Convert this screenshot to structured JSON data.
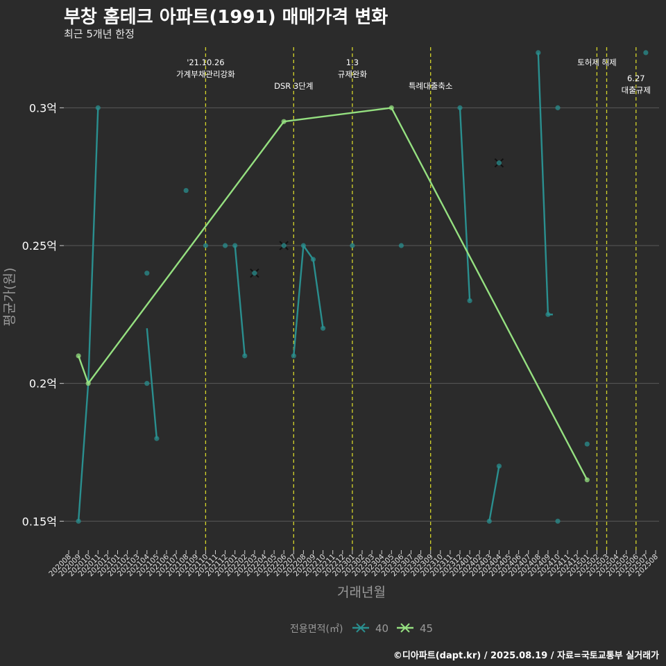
{
  "title": "부창 홈테크 아파트(1991) 매매가격 변화",
  "subtitle": "최근 5개년 한정",
  "caption": "©디아파트(dapt.kr) / 2025.08.19 / 자료=국토교통부 실거래가",
  "chart_data": {
    "type": "line",
    "xlabel": "거래년월",
    "ylabel": "평균가(원)",
    "x_ticks": [
      "202008",
      "202009",
      "202010",
      "202011",
      "202012",
      "202101",
      "202102",
      "202103",
      "202104",
      "202105",
      "202106",
      "202107",
      "202108",
      "202109",
      "202110",
      "202111",
      "202112",
      "202201",
      "202202",
      "202203",
      "202204",
      "202205",
      "202206",
      "202207",
      "202208",
      "202209",
      "202210",
      "202211",
      "202212",
      "202301",
      "202302",
      "202303",
      "202304",
      "202305",
      "202306",
      "202307",
      "202308",
      "202309",
      "202310",
      "202311",
      "202312",
      "202401",
      "202402",
      "202403",
      "202404",
      "202405",
      "202406",
      "202407",
      "202408",
      "202409",
      "202410",
      "202411",
      "202412",
      "202501",
      "202502",
      "202503",
      "202504",
      "202505",
      "202506",
      "202507",
      "202508"
    ],
    "y_ticks": [
      0.15,
      0.2,
      0.25,
      0.3
    ],
    "y_tick_labels": [
      "0.15억",
      "0.2억",
      "0.25억",
      "0.3억"
    ],
    "ylim": [
      0.1395,
      0.3235
    ],
    "legend": {
      "title": "전용면적(㎡)",
      "entries": [
        "40",
        "45"
      ],
      "position": "bottom"
    },
    "colors": {
      "40": "#2a8f8f",
      "45": "#95e080",
      "vline": "#d6d62a",
      "grid": "#5a5a5a",
      "axis_text": "#ffffff",
      "axis_title": "#9a9a9a"
    },
    "events": [
      {
        "month": "202110",
        "line1": "'21.10.26",
        "line2": "가계부채관리강화",
        "row": 1
      },
      {
        "month": "202207",
        "line1": "DSR 3단계",
        "line2": "",
        "row": 2
      },
      {
        "month": "202301",
        "line1": "1.3",
        "line2": "규제완화",
        "row": 1
      },
      {
        "month": "202309",
        "line1": "특례대출축소",
        "line2": "",
        "row": 2
      },
      {
        "month": "202502",
        "line1": "토허제 해제",
        "line2": "",
        "row": 1
      },
      {
        "month": "202503",
        "line1": "",
        "line2": "",
        "row": 1
      },
      {
        "month": "202506",
        "line1": "6.27",
        "line2": "대출규제",
        "row": 3
      }
    ],
    "series": [
      {
        "name": "40",
        "segments": [
          [
            [
              "202009",
              0.15
            ],
            [
              "202010",
              0.2
            ],
            [
              "202011",
              0.3
            ]
          ],
          [
            [
              "202104",
              0.22
            ],
            [
              "202105",
              0.18
            ]
          ],
          [
            [
              "202201",
              0.25
            ],
            [
              "202202",
              0.21
            ]
          ],
          [
            [
              "202207",
              0.21
            ],
            [
              "202208",
              0.25
            ],
            [
              "202209",
              0.245
            ],
            [
              "202210",
              0.22
            ]
          ],
          [
            [
              "202312",
              0.3
            ],
            [
              "202401",
              0.23
            ]
          ],
          [
            [
              "202403",
              0.15
            ],
            [
              "202404",
              0.17
            ]
          ],
          [
            [
              "202408",
              0.32
            ],
            [
              "202409",
              0.225
            ],
            [
              "20240950",
              0.225
            ]
          ]
        ],
        "points": [
          [
            "202009",
            0.15
          ],
          [
            "202011",
            0.3
          ],
          [
            "202104",
            0.24
          ],
          [
            "202104",
            0.2
          ],
          [
            "202105",
            0.18
          ],
          [
            "202108",
            0.27
          ],
          [
            "202110",
            0.25
          ],
          [
            "202112",
            0.25
          ],
          [
            "202201",
            0.25
          ],
          [
            "202202",
            0.21
          ],
          [
            "202207",
            0.21
          ],
          [
            "202208",
            0.25
          ],
          [
            "202209",
            0.245
          ],
          [
            "202210",
            0.22
          ],
          [
            "202301",
            0.25
          ],
          [
            "202306",
            0.25
          ],
          [
            "202312",
            0.3
          ],
          [
            "202401",
            0.23
          ],
          [
            "202403",
            0.15
          ],
          [
            "202404",
            0.17
          ],
          [
            "202408",
            0.32
          ],
          [
            "202409",
            0.225
          ],
          [
            "202410",
            0.3
          ],
          [
            "202410",
            0.15
          ],
          [
            "202501",
            0.178
          ],
          [
            "202507",
            0.32
          ]
        ],
        "x_markers": [
          [
            "202203",
            0.24
          ],
          [
            "202206",
            0.25
          ],
          [
            "202404",
            0.28
          ]
        ]
      },
      {
        "name": "45",
        "segments": [
          [
            [
              "202009",
              0.21
            ],
            [
              "202010",
              0.2
            ],
            [
              "202206",
              0.295
            ],
            [
              "202305",
              0.3
            ],
            [
              "202501",
              0.165
            ]
          ]
        ],
        "points": [
          [
            "202009",
            0.21
          ],
          [
            "202010",
            0.2
          ],
          [
            "202206",
            0.295
          ],
          [
            "202305",
            0.3
          ],
          [
            "202501",
            0.165
          ]
        ],
        "x_markers": []
      }
    ]
  }
}
